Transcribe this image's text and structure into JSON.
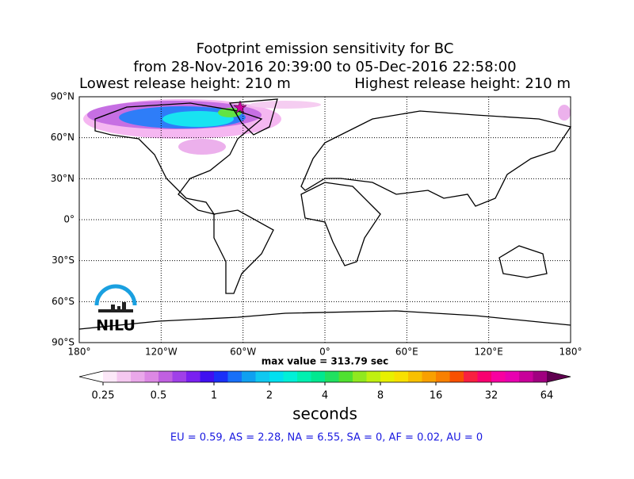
{
  "header": {
    "title_lines": [
      "Footprint emission sensitivity for BC",
      "from 28-Nov-2016 20:39:00 to 05-Dec-2016 22:58:00"
    ],
    "lowest": "Lowest release height: 210 m",
    "highest": "Highest release height: 210 m"
  },
  "map": {
    "lonlim": [
      -180,
      180
    ],
    "latlim": [
      -90,
      90
    ],
    "lonticks": [
      {
        "value": -180,
        "label": "180°"
      },
      {
        "value": -120,
        "label": "120°W"
      },
      {
        "value": -60,
        "label": "60°W"
      },
      {
        "value": 0,
        "label": "0°"
      },
      {
        "value": 60,
        "label": "60°E"
      },
      {
        "value": 120,
        "label": "120°E"
      },
      {
        "value": 180,
        "label": "180°"
      }
    ],
    "latticks": [
      {
        "value": -90,
        "label": "90°S"
      },
      {
        "value": -60,
        "label": "60°S"
      },
      {
        "value": -30,
        "label": "30°S"
      },
      {
        "value": 0,
        "label": "0°"
      },
      {
        "value": 30,
        "label": "30°N"
      },
      {
        "value": 60,
        "label": "60°N"
      },
      {
        "value": 90,
        "label": "90°N"
      }
    ],
    "grid": true,
    "logo": "NILU",
    "max_value": "max value = 313.79 sec"
  },
  "colorbar": {
    "scale": "log",
    "clim": [
      0.25,
      64
    ],
    "ticks": [
      0.25,
      0.5,
      1,
      2,
      4,
      8,
      16,
      32,
      64
    ],
    "label": "seconds",
    "under": "#ffffff",
    "over": "#600050",
    "colors": [
      "#fce8f8",
      "#f5c8f0",
      "#eaa8ea",
      "#dc88e4",
      "#c060e0",
      "#a040e8",
      "#7a20f0",
      "#4010f0",
      "#1a30f8",
      "#1870f8",
      "#10a0f0",
      "#10c8f0",
      "#00e0f0",
      "#00f0d8",
      "#00f0b0",
      "#00e890",
      "#20e060",
      "#50e030",
      "#90e820",
      "#c0f010",
      "#e8f000",
      "#f8e000",
      "#f8c000",
      "#f8a000",
      "#f88000",
      "#f85000",
      "#f82040",
      "#f80070",
      "#f800a0",
      "#e800b0",
      "#c8009a",
      "#a00080"
    ]
  },
  "footer": {
    "summary": "EU = 0.59,  AS = 2.28,  NA = 6.55,  SA = 0,  AF = 0.02,  AU = 0"
  }
}
